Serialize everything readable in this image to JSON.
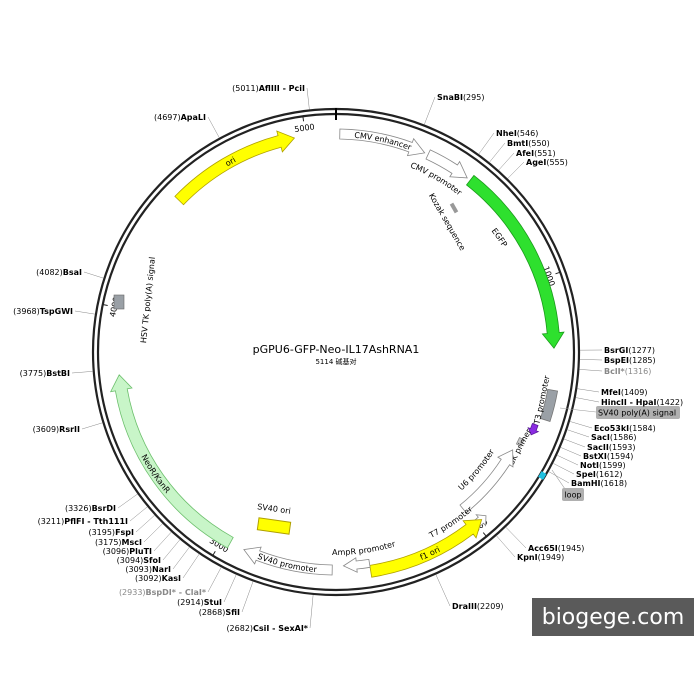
{
  "title": "pGPU6-GFP-Neo-IL17AshRNA1",
  "subtitle": "5114 碱基对",
  "watermark": "biogege.com",
  "ticks": [
    "1000",
    "2000",
    "3000",
    "4000",
    "5000"
  ],
  "features": [
    "CMV enhancer",
    "CMV promoter",
    "Kozak sequence",
    "EGFP",
    "T3 promoter",
    "SV40 poly(A) signal",
    "loop",
    "SK primer",
    "U6 promoter",
    "T7 promoter",
    "f1 ori",
    "AmpR promoter",
    "SV40 promoter",
    "SV40 ori",
    "NeoR/KanR",
    "HSV TK poly(A) signal",
    "ori"
  ],
  "enzymes": [
    {
      "name": "SnaBI",
      "position": "(295)"
    },
    {
      "name": "NheI",
      "position": "(546)"
    },
    {
      "name": "BmtI",
      "position": "(550)"
    },
    {
      "name": "AfeI",
      "position": "(551)"
    },
    {
      "name": "AgeI",
      "position": "(555)"
    },
    {
      "name": "BsrGI",
      "position": "(1277)"
    },
    {
      "name": "BspEI",
      "position": "(1285)"
    },
    {
      "name": "BclI*",
      "position": "(1316)"
    },
    {
      "name": "MfeI",
      "position": "(1409)"
    },
    {
      "name": "HincII - HpaI",
      "position": "(1422)"
    },
    {
      "name": "Eco53kI",
      "position": "(1584)"
    },
    {
      "name": "SacI",
      "position": "(1586)"
    },
    {
      "name": "SacII",
      "position": "(1593)"
    },
    {
      "name": "BstXI",
      "position": "(1594)"
    },
    {
      "name": "NotI",
      "position": "(1599)"
    },
    {
      "name": "SpeI",
      "position": "(1612)"
    },
    {
      "name": "BamHI",
      "position": "(1618)"
    },
    {
      "name": "Acc65I",
      "position": "(1945)"
    },
    {
      "name": "KpnI",
      "position": "(1949)"
    },
    {
      "name": "DraIII",
      "position": "(2209)"
    },
    {
      "name": "CsiI - SexAI*",
      "position": "(2682)"
    },
    {
      "name": "SfiI",
      "position": "(2868)"
    },
    {
      "name": "StuI",
      "position": "(2914)"
    },
    {
      "name": "BspDI* - ClaI*",
      "position": "(2933)"
    },
    {
      "name": "KasI",
      "position": "(3092)"
    },
    {
      "name": "NarI",
      "position": "(3093)"
    },
    {
      "name": "SfoI",
      "position": "(3094)"
    },
    {
      "name": "PluTI",
      "position": "(3096)"
    },
    {
      "name": "MscI",
      "position": "(3175)"
    },
    {
      "name": "FspI",
      "position": "(3195)"
    },
    {
      "name": "PflFI - Tth111I",
      "position": "(3211)"
    },
    {
      "name": "BsrDI",
      "position": "(3326)"
    },
    {
      "name": "RsrII",
      "position": "(3609)"
    },
    {
      "name": "BstBI",
      "position": "(3775)"
    },
    {
      "name": "TspGWI",
      "position": "(3968)"
    },
    {
      "name": "BsaI",
      "position": "(4082)"
    },
    {
      "name": "ApaLI",
      "position": "(4697)"
    },
    {
      "name": "AflIII - PciI",
      "position": "(5011)"
    }
  ]
}
